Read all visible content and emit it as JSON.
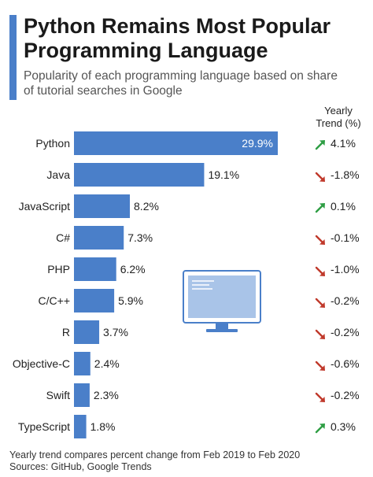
{
  "header": {
    "title_line1": "Python Remains Most Popular",
    "title_line2": "Programming Language",
    "subtitle_line1": "Popularity of each programming language based on share",
    "subtitle_line2": "of tutorial searches in Google"
  },
  "trend_header": {
    "line1": "Yearly",
    "line2": "Trend (%)"
  },
  "colors": {
    "bar": "#4a7fc9",
    "accent": "#4a7fc9",
    "up": "#2e9e44",
    "down": "#c0392b"
  },
  "chart_data": {
    "type": "bar",
    "orientation": "horizontal",
    "categories": [
      "Python",
      "Java",
      "JavaScript",
      "C#",
      "PHP",
      "C/C++",
      "R",
      "Objective-C",
      "Swift",
      "TypeScript"
    ],
    "values": [
      29.9,
      19.1,
      8.2,
      7.3,
      6.2,
      5.9,
      3.7,
      2.4,
      2.3,
      1.8
    ],
    "value_labels": [
      "29.9%",
      "19.1%",
      "8.2%",
      "7.3%",
      "6.2%",
      "5.9%",
      "3.7%",
      "2.4%",
      "2.3%",
      "1.8%"
    ],
    "trend": [
      4.1,
      -1.8,
      0.1,
      -0.1,
      -1.0,
      -0.2,
      -0.2,
      -0.6,
      -0.2,
      0.3
    ],
    "trend_labels": [
      "4.1%",
      "-1.8%",
      "0.1%",
      "-0.1%",
      "-1.0%",
      "-0.2%",
      "-0.2%",
      "-0.6%",
      "-0.2%",
      "0.3%"
    ],
    "xlim": [
      0,
      29.9
    ],
    "grid": false
  },
  "footer": {
    "note": "Yearly trend compares percent change from Feb 2019 to Feb 2020",
    "sources": "Sources: GitHub, Google Trends"
  }
}
